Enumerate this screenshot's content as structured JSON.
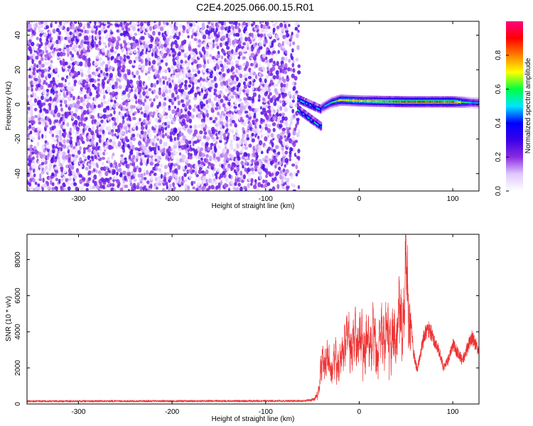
{
  "title": "C2E4.2025.066.00.15.R01",
  "chart_data": [
    {
      "type": "heatmap",
      "xlabel": "Height of straight line (km)",
      "ylabel": "Frequency (Hz)",
      "xlim": [
        -355,
        128
      ],
      "ylim": [
        -50,
        48
      ],
      "xticks": [
        -300,
        -200,
        -100,
        0,
        100
      ],
      "yticks": [
        -40,
        -20,
        0,
        20,
        40
      ],
      "colorbar": {
        "label": "Normalized spectral amplitude",
        "range": [
          0,
          1
        ],
        "ticks": [
          "0.0",
          "0.2",
          "0.4",
          "0.6",
          "0.8"
        ],
        "colormap": [
          "#ffffff",
          "#e0c8ff",
          "#8a2be2",
          "#3a00e8",
          "#0000ff",
          "#00e5ff",
          "#00ff40",
          "#ffff00",
          "#ff7f00",
          "#ff0000",
          "#ff0080"
        ]
      },
      "regions": [
        {
          "name": "noise",
          "x_range": [
            -355,
            -65
          ],
          "freq_range": [
            -50,
            48
          ],
          "amplitude": 0.1
        },
        {
          "name": "onset",
          "x_range": [
            -65,
            -40
          ],
          "freq_start": [
            3,
            -3
          ],
          "freq_end": [
            -3,
            -13
          ],
          "amplitude": 0.45
        },
        {
          "name": "carrier",
          "x_range": [
            -40,
            128
          ],
          "freq": [
            [
              -40,
              -2
            ],
            [
              -30,
              1
            ],
            [
              -20,
              2.5
            ],
            [
              0,
              2
            ],
            [
              50,
              1.5
            ],
            [
              100,
              1.5
            ],
            [
              128,
              0.8
            ]
          ],
          "amplitude": [
            [
              -40,
              0.4
            ],
            [
              -20,
              0.7
            ],
            [
              0,
              0.7
            ],
            [
              40,
              0.85
            ],
            [
              100,
              0.85
            ],
            [
              120,
              0.45
            ]
          ]
        }
      ]
    },
    {
      "type": "line",
      "xlabel": "Height of straight line (km)",
      "ylabel": "SNR (10 * v/v)",
      "xlim": [
        -355,
        128
      ],
      "ylim": [
        0,
        9400
      ],
      "xticks": [
        -300,
        -200,
        -100,
        0,
        100
      ],
      "yticks": [
        0,
        2000,
        4000,
        6000,
        8000
      ],
      "color": "#ee3333",
      "envelope": [
        [
          -355,
          180
        ],
        [
          -60,
          200
        ],
        [
          -48,
          300
        ],
        [
          -44,
          800
        ],
        [
          -40,
          2800
        ],
        [
          -35,
          3300
        ],
        [
          -30,
          2400
        ],
        [
          -25,
          3200
        ],
        [
          -20,
          2900
        ],
        [
          -15,
          4500
        ],
        [
          -10,
          4300
        ],
        [
          -5,
          4600
        ],
        [
          0,
          4600
        ],
        [
          5,
          4400
        ],
        [
          10,
          4100
        ],
        [
          15,
          4800
        ],
        [
          20,
          3500
        ],
        [
          25,
          5100
        ],
        [
          30,
          4900
        ],
        [
          35,
          4400
        ],
        [
          40,
          4800
        ],
        [
          42,
          6300
        ],
        [
          45,
          5300
        ],
        [
          48,
          7000
        ],
        [
          50,
          9300
        ],
        [
          52,
          7000
        ],
        [
          55,
          5200
        ],
        [
          58,
          3000
        ],
        [
          62,
          2000
        ],
        [
          66,
          3200
        ],
        [
          70,
          4200
        ],
        [
          75,
          4500
        ],
        [
          80,
          3800
        ],
        [
          85,
          3200
        ],
        [
          90,
          2200
        ],
        [
          95,
          2600
        ],
        [
          100,
          3500
        ],
        [
          105,
          3100
        ],
        [
          110,
          2600
        ],
        [
          115,
          3200
        ],
        [
          120,
          4000
        ],
        [
          125,
          3500
        ],
        [
          128,
          3000
        ]
      ]
    }
  ]
}
